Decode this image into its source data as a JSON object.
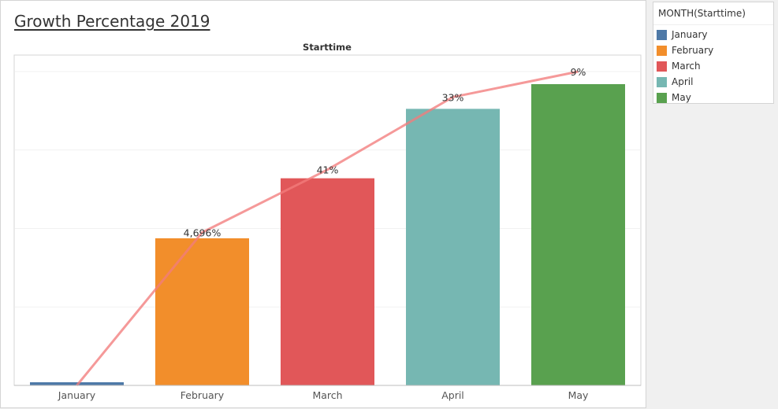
{
  "legend": {
    "title": "MONTH(Starttime)",
    "items": [
      {
        "label": "January",
        "color": "#4e79a7"
      },
      {
        "label": "February",
        "color": "#f28e2b"
      },
      {
        "label": "March",
        "color": "#e15759"
      },
      {
        "label": "April",
        "color": "#76b7b2"
      },
      {
        "label": "May",
        "color": "#59a14f"
      }
    ]
  },
  "chart_data": {
    "type": "bar",
    "title": "Growth Percentage 2019",
    "header": "Starttime",
    "categories": [
      "January",
      "February",
      "March",
      "April",
      "May"
    ],
    "values": [
      0.8,
      37.5,
      52.8,
      70.5,
      76.8
    ],
    "bar_colors": [
      "#4e79a7",
      "#f28e2b",
      "#e15759",
      "#76b7b2",
      "#59a14f"
    ],
    "data_labels": [
      "",
      "4,696%",
      "41%",
      "33%",
      "9%"
    ],
    "overlay_line": {
      "values": [
        0,
        39,
        55,
        73.5,
        80
      ],
      "color": "#f27c7c"
    },
    "ylim": [
      0,
      80
    ],
    "y_axis_shown": false,
    "grid": true,
    "legend_position": "right"
  }
}
